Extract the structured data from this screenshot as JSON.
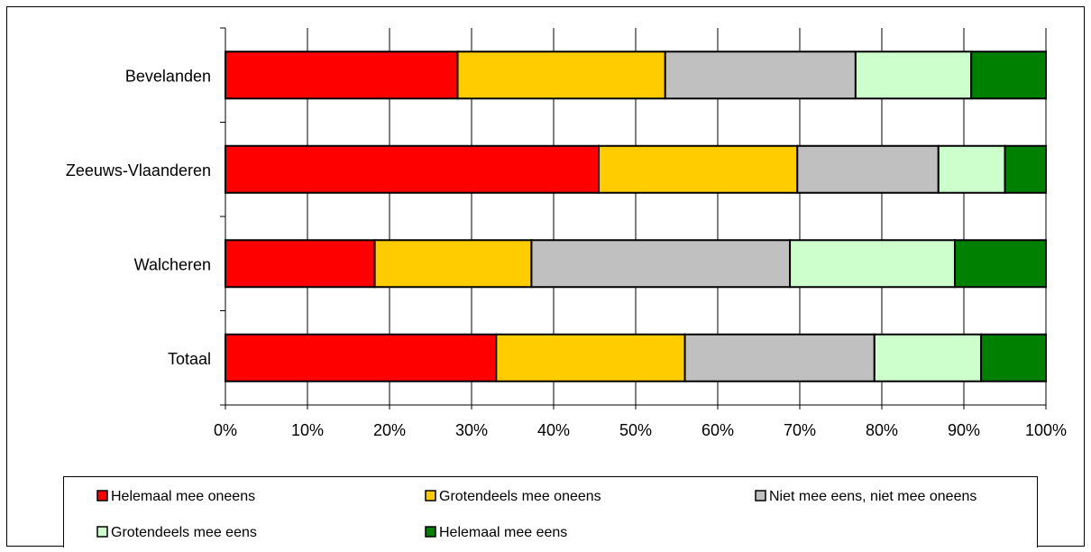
{
  "chart_data": {
    "type": "bar",
    "orientation": "horizontal",
    "stacked": "percent",
    "title": "",
    "xlabel": "",
    "ylabel": "",
    "xlim": [
      0,
      100
    ],
    "x_ticks": [
      "0%",
      "10%",
      "20%",
      "30%",
      "40%",
      "50%",
      "60%",
      "70%",
      "80%",
      "90%",
      "100%"
    ],
    "categories": [
      "Bevelanden",
      "Zeeuws-Vlaanderen",
      "Walcheren",
      "Totaal"
    ],
    "series": [
      {
        "name": "Helemaal mee oneens",
        "color": "#ff0000",
        "values": [
          28.3,
          45.5,
          18.2,
          33.0
        ]
      },
      {
        "name": "Grotendeels mee oneens",
        "color": "#ffcc00",
        "values": [
          25.3,
          24.2,
          19.1,
          23.0
        ]
      },
      {
        "name": "Niet mee eens, niet mee oneens",
        "color": "#c0c0c0",
        "values": [
          23.2,
          17.2,
          31.5,
          23.1
        ]
      },
      {
        "name": "Grotendeels mee eens",
        "color": "#ccffcc",
        "values": [
          14.1,
          8.1,
          20.1,
          13.0
        ]
      },
      {
        "name": "Helemaal mee eens",
        "color": "#008000",
        "values": [
          9.1,
          5.0,
          11.1,
          7.9
        ]
      }
    ],
    "grid": true,
    "legend_position": "bottom"
  }
}
